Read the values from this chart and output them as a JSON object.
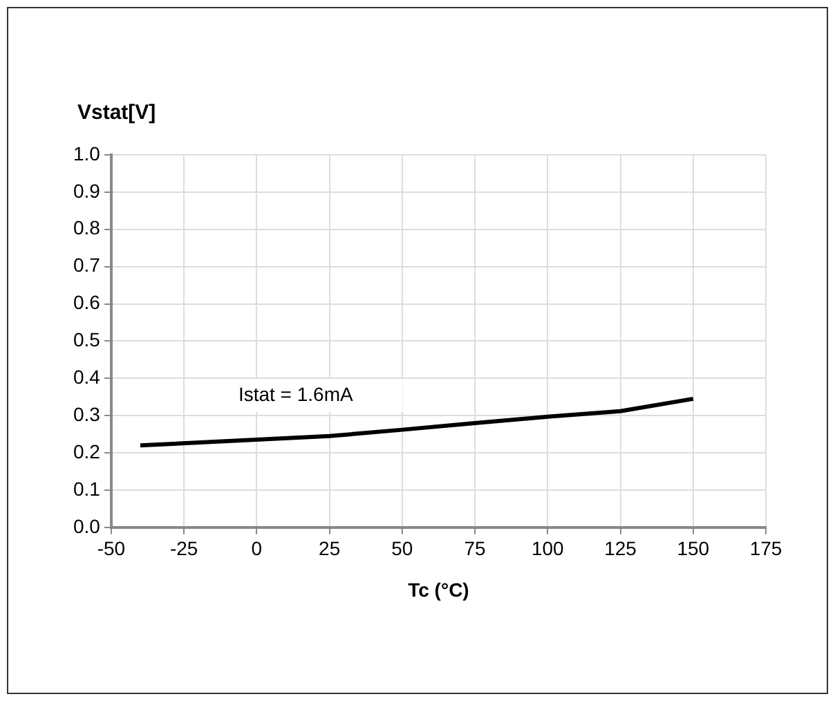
{
  "chart_data": {
    "type": "line",
    "xlabel": "Tc (°C)",
    "ylabel": "Vstat[V]",
    "x": [
      -40,
      25,
      50,
      75,
      100,
      125,
      150
    ],
    "series": [
      {
        "color": "#000000",
        "values": [
          0.22,
          0.245,
          0.262,
          0.28,
          0.297,
          0.312,
          0.345
        ]
      }
    ],
    "xlim": [
      -50,
      175
    ],
    "xticks": [
      -50,
      -25,
      0,
      25,
      50,
      75,
      100,
      125,
      150,
      175
    ],
    "ylim": [
      0,
      1
    ],
    "yticks": [
      {
        "value": 0,
        "label": "0.0"
      },
      {
        "value": 0.1,
        "label": "0.1"
      },
      {
        "value": 0.2,
        "label": "0.2"
      },
      {
        "value": 0.3,
        "label": "0.3"
      },
      {
        "value": 0.4,
        "label": "0.4"
      },
      {
        "value": 0.5,
        "label": "0.5"
      },
      {
        "value": 0.6,
        "label": "0.6"
      },
      {
        "value": 0.7,
        "label": "0.7"
      },
      {
        "value": 0.8,
        "label": "0.8"
      },
      {
        "value": 0.9,
        "label": "0.9"
      },
      {
        "value": 1,
        "label": "1.0"
      }
    ],
    "annotations": [
      "Istat = 1.6mA"
    ],
    "grid": true,
    "legend": false,
    "marker": "none",
    "line_style": "solid"
  }
}
